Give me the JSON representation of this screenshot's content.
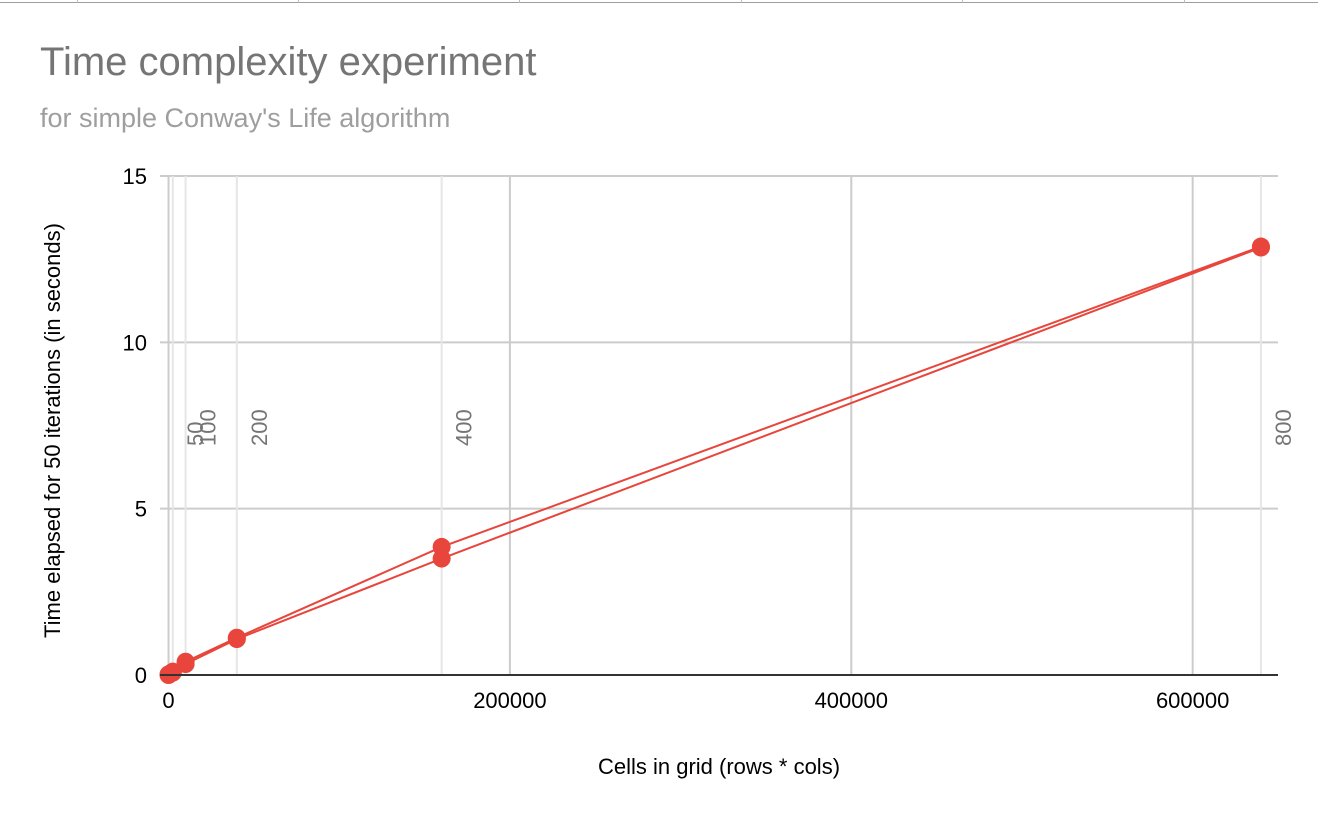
{
  "chart_data": {
    "type": "scatter",
    "title": "Time complexity experiment",
    "subtitle": "for simple Conway's Life algorithm",
    "xlabel": "Cells in grid (rows * cols)",
    "ylabel": "Time elapsed for 50 iterations (in seconds)",
    "xlim": [
      -5000,
      650000
    ],
    "ylim": [
      0,
      15
    ],
    "x_ticks": [
      {
        "value": 0,
        "label": "0"
      },
      {
        "value": 200000,
        "label": "200000"
      },
      {
        "value": 400000,
        "label": "400000"
      },
      {
        "value": 600000,
        "label": "600000"
      }
    ],
    "y_ticks": [
      {
        "value": 0,
        "label": "0"
      },
      {
        "value": 5,
        "label": "5"
      },
      {
        "value": 10,
        "label": "10"
      },
      {
        "value": 15,
        "label": "15"
      }
    ],
    "grid": true,
    "legend": "none",
    "series_color": "#e8453c",
    "point_color": "#e8453c",
    "grid_color": "#cccccc",
    "minor_grid_color": "#e6e6e6",
    "axis_color": "#333333",
    "series": [
      {
        "x": [
          0,
          2500,
          10000,
          40000,
          160000,
          640000
        ],
        "y": [
          0.02,
          0.1,
          0.4,
          1.12,
          3.85,
          12.88
        ]
      },
      {
        "x": [
          0,
          2500,
          10000,
          40000,
          160000,
          640000
        ],
        "y": [
          0.0,
          0.07,
          0.33,
          1.08,
          3.5,
          12.85
        ]
      }
    ],
    "annotations": [
      {
        "x": 2500,
        "label": "50"
      },
      {
        "x": 10000,
        "label": "100"
      },
      {
        "x": 40000,
        "label": "200"
      },
      {
        "x": 160000,
        "label": "400"
      },
      {
        "x": 640000,
        "label": "800"
      }
    ]
  }
}
